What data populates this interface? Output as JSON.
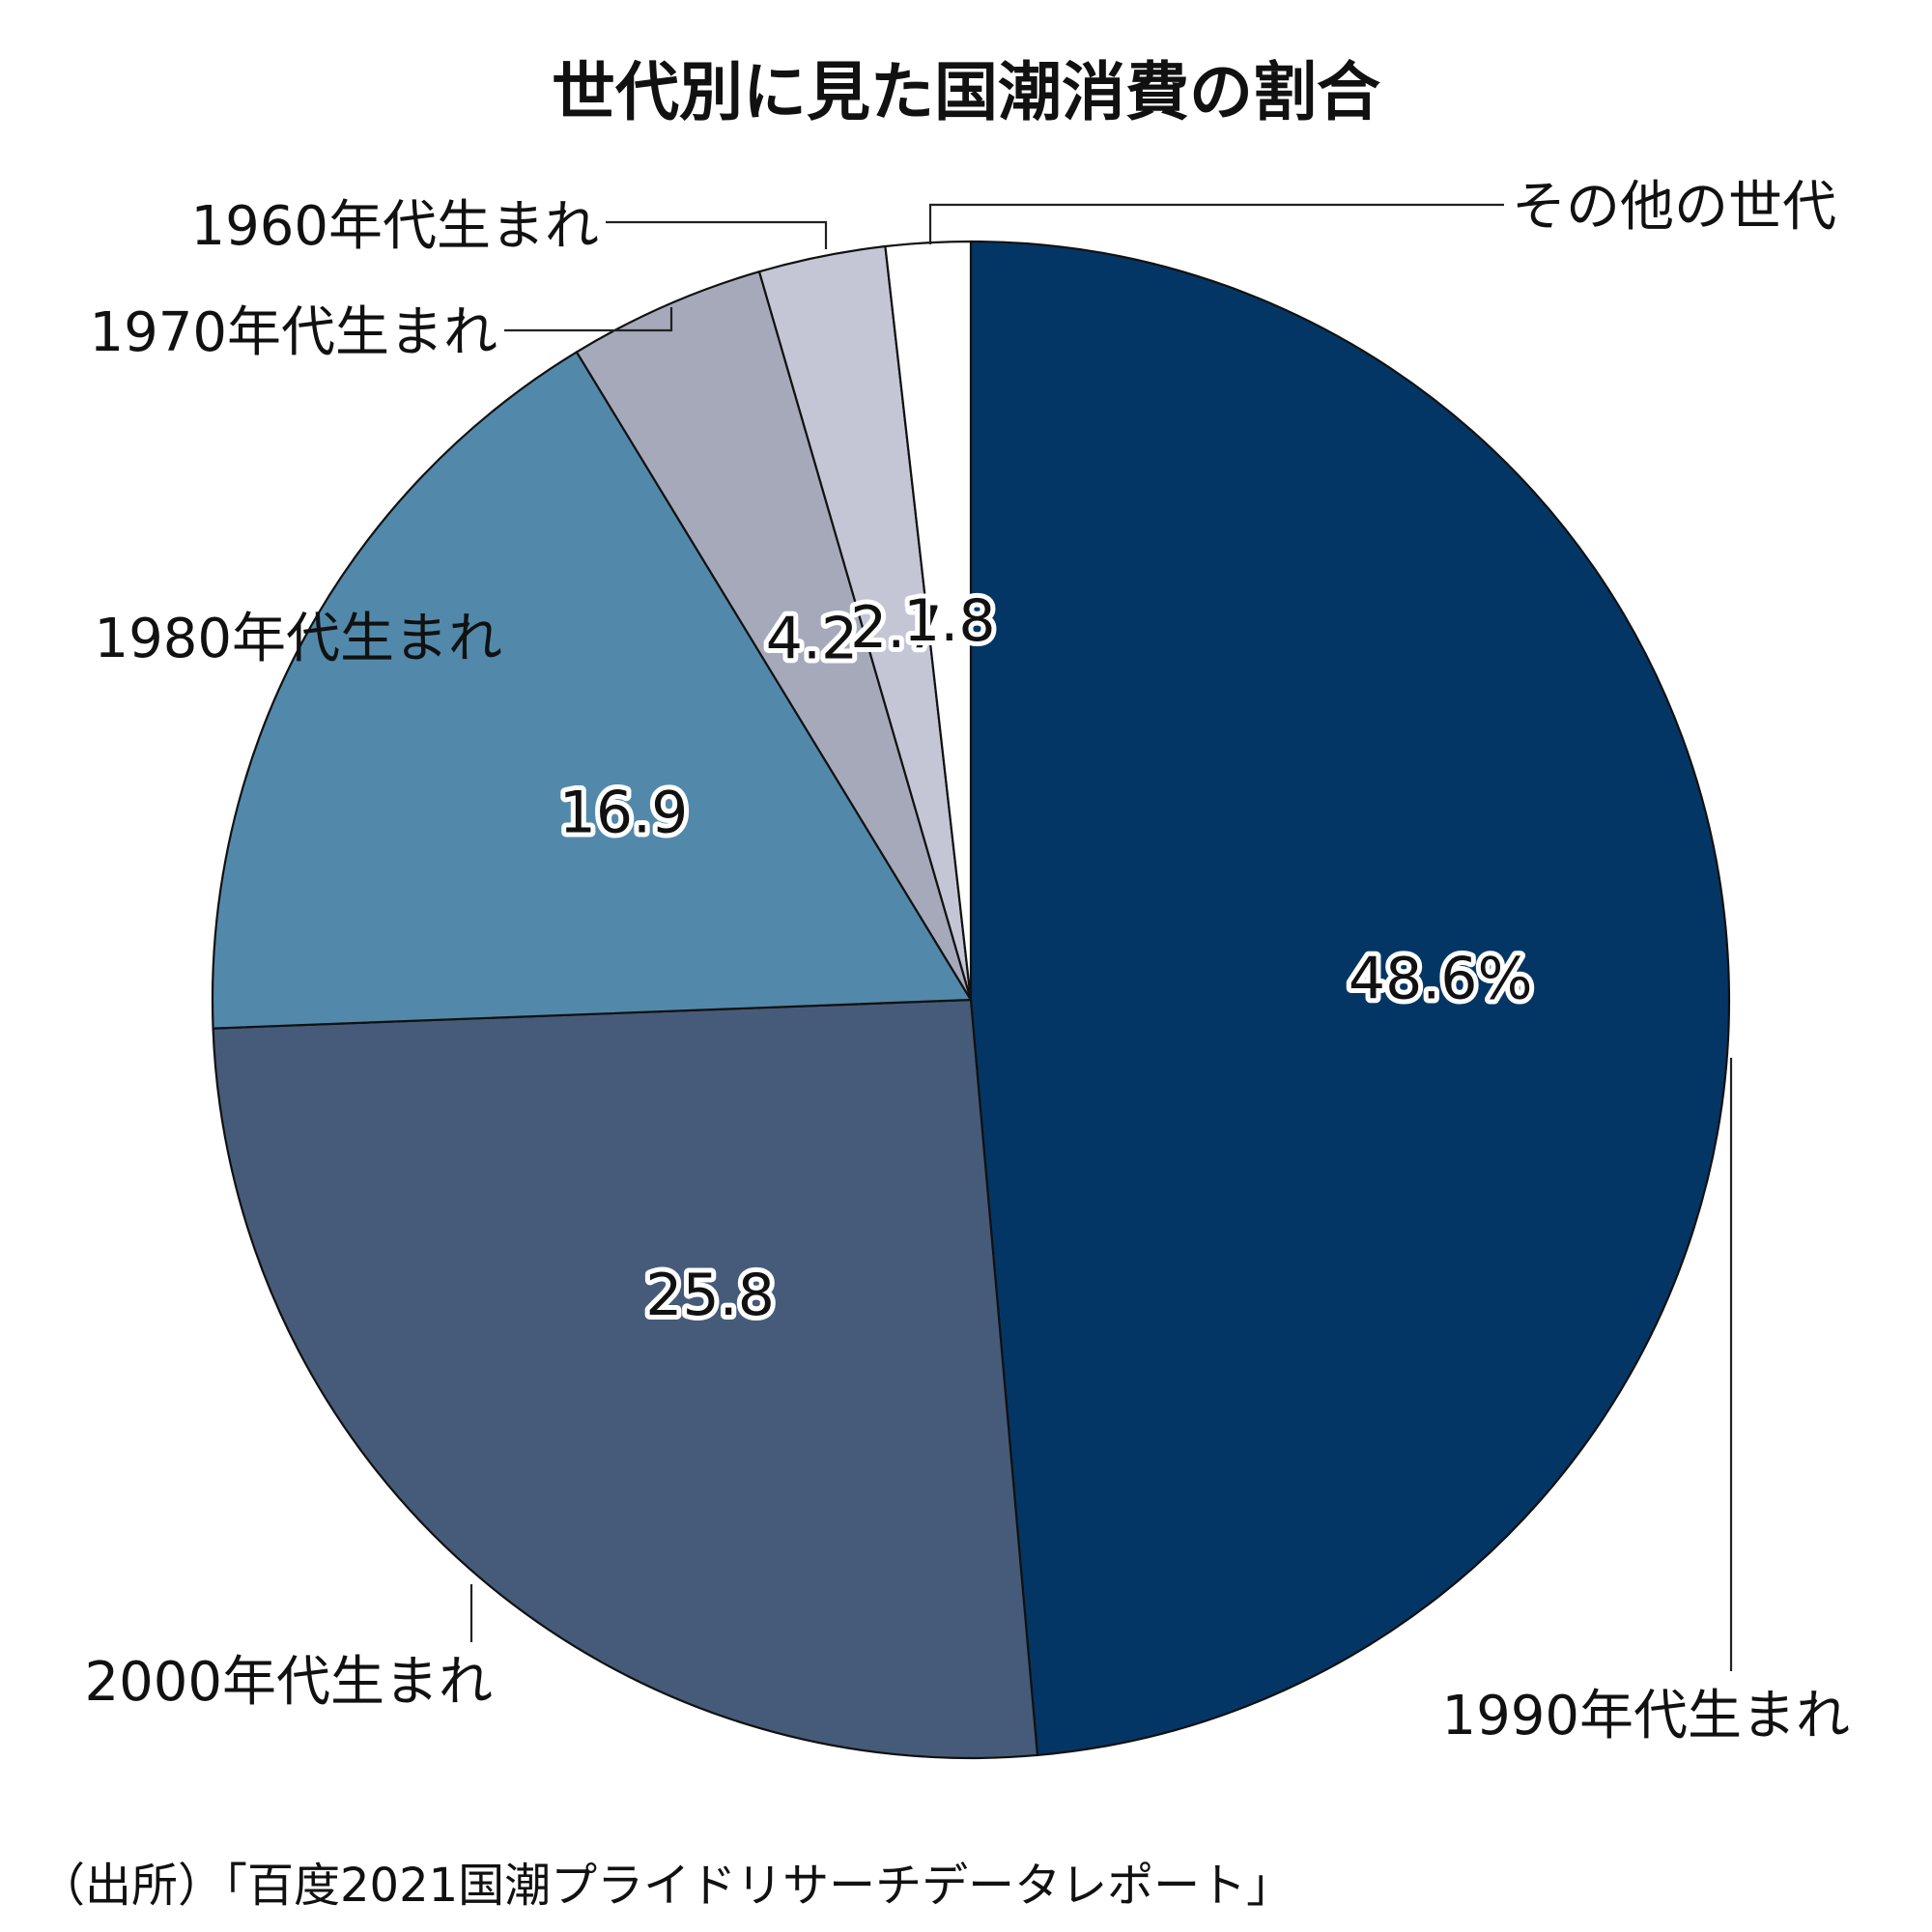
{
  "chart_data": {
    "type": "pie",
    "title": "世代別に見た国潮消費の割合",
    "unit": "%",
    "slices": [
      {
        "label": "1990年代生まれ",
        "value": 48.6,
        "value_label": "48.6%",
        "color": "#043665"
      },
      {
        "label": "2000年代生まれ",
        "value": 25.8,
        "value_label": "25.8",
        "color": "#465b79"
      },
      {
        "label": "1980年代生まれ",
        "value": 16.9,
        "value_label": "16.9",
        "color": "#5289ab"
      },
      {
        "label": "1970年代生まれ",
        "value": 4.2,
        "value_label": "4.2",
        "color": "#a5a9ba"
      },
      {
        "label": "1960年代生まれ",
        "value": 2.7,
        "value_label": "2.7",
        "color": "#c4c6d6"
      },
      {
        "label": "その他の世代",
        "value": 1.8,
        "value_label": "1.8",
        "color": "#ffffff"
      }
    ],
    "start": "12 o'clock",
    "direction": "clockwise"
  },
  "source": "（出所）「百度2021国潮プライドリサーチデータレポート」"
}
